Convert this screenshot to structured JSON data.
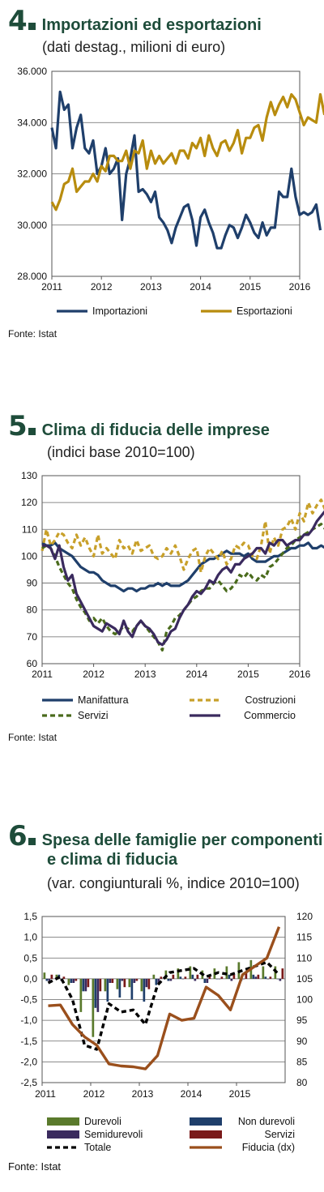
{
  "chart_data": [
    {
      "type": "line",
      "number": "4",
      "title": "Importazioni ed esportazioni",
      "subtitle": "(dati destag., milioni di euro)",
      "ylim": [
        28000,
        36000
      ],
      "yticks": [
        "28.000",
        "30.000",
        "32.000",
        "34.000",
        "36.000"
      ],
      "yticks_values": [
        28000,
        30000,
        32000,
        34000,
        36000
      ],
      "xticks": [
        "2011",
        "2012",
        "2013",
        "2014",
        "2015",
        "2016"
      ],
      "x_start": "2011-01",
      "x_step": "month",
      "grid": "horizontal",
      "legend_position": "bottom",
      "source": "Fonte: Istat",
      "series": [
        {
          "name": "Importazioni",
          "color": "#1f3f6b",
          "values": [
            33800,
            33000,
            35200,
            34500,
            34700,
            33000,
            33800,
            34300,
            33000,
            32800,
            33300,
            32000,
            32300,
            33000,
            32000,
            32200,
            32600,
            30200,
            32000,
            32600,
            33500,
            31300,
            31400,
            31200,
            30900,
            31300,
            30300,
            30100,
            29800,
            29300,
            29900,
            30300,
            30700,
            30800,
            30200,
            29200,
            30300,
            30600,
            30100,
            29700,
            29100,
            29100,
            29600,
            30000,
            29900,
            29500,
            29900,
            30400,
            30100,
            29700,
            29500,
            30100,
            29600,
            29900,
            29900,
            31300,
            31100,
            31100,
            32200,
            31100,
            30400,
            30500,
            30400,
            30500,
            30800,
            29800
          ]
        },
        {
          "name": "Esportazioni",
          "color": "#b88c0e",
          "values": [
            30900,
            30600,
            31000,
            31600,
            31700,
            32200,
            31300,
            31500,
            31700,
            31700,
            32000,
            31700,
            32300,
            32100,
            32700,
            32700,
            32500,
            32500,
            32900,
            32200,
            32900,
            32800,
            33300,
            32200,
            32900,
            32400,
            32700,
            32400,
            32600,
            32800,
            32400,
            32900,
            32900,
            32600,
            33200,
            33000,
            33400,
            32700,
            33500,
            33000,
            32700,
            33200,
            33300,
            32900,
            33200,
            33700,
            32800,
            33400,
            33400,
            33800,
            33900,
            33300,
            34200,
            34800,
            34300,
            34700,
            35000,
            34600,
            35100,
            34900,
            34400,
            33900,
            34200,
            34100,
            34000,
            35100,
            34300
          ]
        }
      ]
    },
    {
      "type": "line",
      "number": "5",
      "title": "Clima di fiducia delle imprese",
      "subtitle": "(indici base 2010=100)",
      "ylim": [
        60,
        130
      ],
      "yticks": [
        "60",
        "70",
        "80",
        "90",
        "100",
        "110",
        "120",
        "130"
      ],
      "yticks_values": [
        60,
        70,
        80,
        90,
        100,
        110,
        120,
        130
      ],
      "xticks": [
        "2011",
        "2012",
        "2013",
        "2014",
        "2015",
        "2016"
      ],
      "x_start": "2011-01",
      "x_step": "month",
      "grid": "horizontal",
      "legend_position": "bottom",
      "source": "Fonte: Istat",
      "series": [
        {
          "name": "Manifattura",
          "color": "#1f3f6b",
          "style": "solid",
          "values": [
            105,
            104,
            104,
            105,
            103,
            102,
            101,
            100,
            98,
            96,
            95,
            94,
            94,
            93,
            91,
            90,
            89,
            89,
            88,
            87,
            88,
            88,
            87,
            88,
            88,
            89,
            89,
            90,
            89,
            90,
            89,
            89,
            89,
            90,
            91,
            93,
            95,
            97,
            98,
            99,
            99,
            100,
            101,
            102,
            101,
            101,
            101,
            100,
            101,
            99,
            98,
            98,
            98,
            99,
            100,
            100,
            101,
            102,
            103,
            103,
            104,
            104,
            105,
            103,
            103,
            104,
            103,
            104,
            105,
            104,
            102,
            102,
            103
          ]
        },
        {
          "name": "Costruzioni",
          "color": "#c8a02a",
          "style": "dashed",
          "values": [
            102,
            110,
            104,
            106,
            109,
            108,
            105,
            103,
            108,
            104,
            107,
            103,
            100,
            108,
            101,
            103,
            101,
            99,
            106,
            103,
            104,
            101,
            106,
            102,
            103,
            104,
            100,
            99,
            100,
            103,
            101,
            104,
            100,
            95,
            99,
            102,
            103,
            94,
            100,
            103,
            101,
            99,
            102,
            97,
            99,
            104,
            103,
            105,
            104,
            100,
            99,
            104,
            113,
            101,
            107,
            104,
            110,
            111,
            114,
            110,
            116,
            113,
            120,
            116,
            119,
            121,
            117,
            123,
            121,
            119,
            114,
            118,
            120
          ]
        },
        {
          "name": "Servizi",
          "color": "#4a6b1c",
          "style": "dashed",
          "values": [
            103,
            104,
            103,
            100,
            96,
            93,
            90,
            88,
            84,
            81,
            79,
            76,
            77,
            75,
            77,
            74,
            72,
            71,
            72,
            74,
            73,
            72,
            74,
            76,
            74,
            72,
            70,
            68,
            65,
            72,
            74,
            77,
            78,
            80,
            82,
            84,
            85,
            87,
            88,
            88,
            90,
            91,
            89,
            87,
            88,
            90,
            93,
            92,
            94,
            92,
            91,
            93,
            92,
            96,
            97,
            99,
            101,
            103,
            104,
            106,
            107,
            108,
            109,
            110,
            111,
            112,
            110,
            113,
            114,
            112,
            108,
            106,
            107
          ]
        },
        {
          "name": "Commercio",
          "color": "#3a2a5e",
          "style": "solid",
          "values": [
            104,
            104,
            103,
            99,
            104,
            96,
            91,
            93,
            86,
            83,
            80,
            77,
            74,
            73,
            72,
            75,
            74,
            73,
            71,
            76,
            72,
            70,
            74,
            76,
            74,
            73,
            71,
            68,
            67,
            69,
            72,
            73,
            77,
            80,
            82,
            85,
            87,
            86,
            88,
            91,
            90,
            93,
            95,
            96,
            94,
            97,
            97,
            99,
            100,
            101,
            103,
            103,
            101,
            105,
            104,
            106,
            106,
            104,
            105,
            106,
            106,
            108,
            108,
            110,
            113,
            115,
            117,
            116,
            111,
            106,
            103,
            105,
            106
          ]
        }
      ]
    },
    {
      "type": "bar+line",
      "number": "6",
      "title_lines": [
        "Spesa delle famiglie per componenti",
        "e clima di fiducia"
      ],
      "subtitle": "(var. congiunturali %, indice 2010=100)",
      "ylim_left": [
        -2.5,
        1.5
      ],
      "yticks_left": [
        "-2,5",
        "-2,0",
        "-1,5",
        "-1,0",
        "-0,5",
        "0,0",
        "0,5",
        "1,0",
        "1,5"
      ],
      "yticks_left_values": [
        -2.5,
        -2.0,
        -1.5,
        -1.0,
        -0.5,
        0.0,
        0.5,
        1.0,
        1.5
      ],
      "ylim_right": [
        80,
        120
      ],
      "yticks_right": [
        "80",
        "85",
        "90",
        "95",
        "100",
        "105",
        "110",
        "115",
        "120"
      ],
      "yticks_right_values": [
        80,
        85,
        90,
        95,
        100,
        105,
        110,
        115,
        120
      ],
      "xticks": [
        "2011",
        "2012",
        "2013",
        "2014",
        "2015"
      ],
      "x_start": "2011-Q1",
      "x_step": "quarter",
      "grid": "horizontal",
      "legend_position": "bottom",
      "source": "Fonte: Istat",
      "bar_series": [
        {
          "name": "Durevoli",
          "color": "#5a7a2c",
          "values": [
            0.15,
            0.1,
            -0.15,
            -0.8,
            -1.4,
            -0.3,
            -0.25,
            -0.2,
            -0.3,
            0.1,
            0.2,
            0.25,
            0.3,
            0.2,
            0.25,
            0.3,
            0.4,
            0.45,
            0.3,
            0.3
          ]
        },
        {
          "name": "Non durevoli",
          "color": "#1f3f6b",
          "values": [
            -0.05,
            0.1,
            -0.1,
            -0.3,
            -0.7,
            -0.55,
            -0.45,
            -0.5,
            -0.55,
            -0.15,
            -0.05,
            0.05,
            0.1,
            -0.1,
            0.0,
            0.1,
            -0.05,
            0.1,
            0.05,
            0.0
          ]
        },
        {
          "name": "Semidurevoli",
          "color": "#3a2a5e",
          "values": [
            -0.05,
            -0.05,
            -0.1,
            -0.3,
            -0.8,
            -0.1,
            -0.05,
            -0.1,
            -0.2,
            -0.1,
            -0.05,
            0.0,
            -0.05,
            -0.1,
            0.0,
            -0.05,
            0.0,
            0.05,
            0.0,
            -0.05
          ]
        },
        {
          "name": "Servizi",
          "color": "#7a1a1a",
          "values": [
            0.1,
            0.05,
            -0.05,
            -0.2,
            -0.3,
            -0.1,
            -0.2,
            -0.05,
            -0.25,
            0.05,
            0.1,
            0.05,
            0.1,
            0.05,
            0.05,
            0.1,
            0.15,
            0.1,
            0.05,
            0.25
          ]
        }
      ],
      "line_series": [
        {
          "name": "Totale",
          "axis": "left",
          "color": "#000000",
          "style": "dashed",
          "values": [
            -0.1,
            0.05,
            -0.5,
            -1.6,
            -1.7,
            -0.6,
            -0.8,
            -0.75,
            -1.1,
            -0.15,
            0.15,
            0.2,
            0.25,
            0.05,
            0.15,
            0.1,
            0.2,
            0.3,
            0.4,
            0.1
          ]
        },
        {
          "name": "Fiducia (dx)",
          "axis": "right",
          "color": "#9a4f1c",
          "style": "solid",
          "values": [
            98.5,
            98.7,
            94.0,
            91.0,
            89.0,
            84.5,
            84.0,
            83.8,
            83.3,
            86.5,
            96.5,
            95.0,
            95.5,
            103.0,
            101.0,
            97.5,
            106.0,
            108.0,
            110.0,
            117.5
          ]
        }
      ]
    }
  ]
}
